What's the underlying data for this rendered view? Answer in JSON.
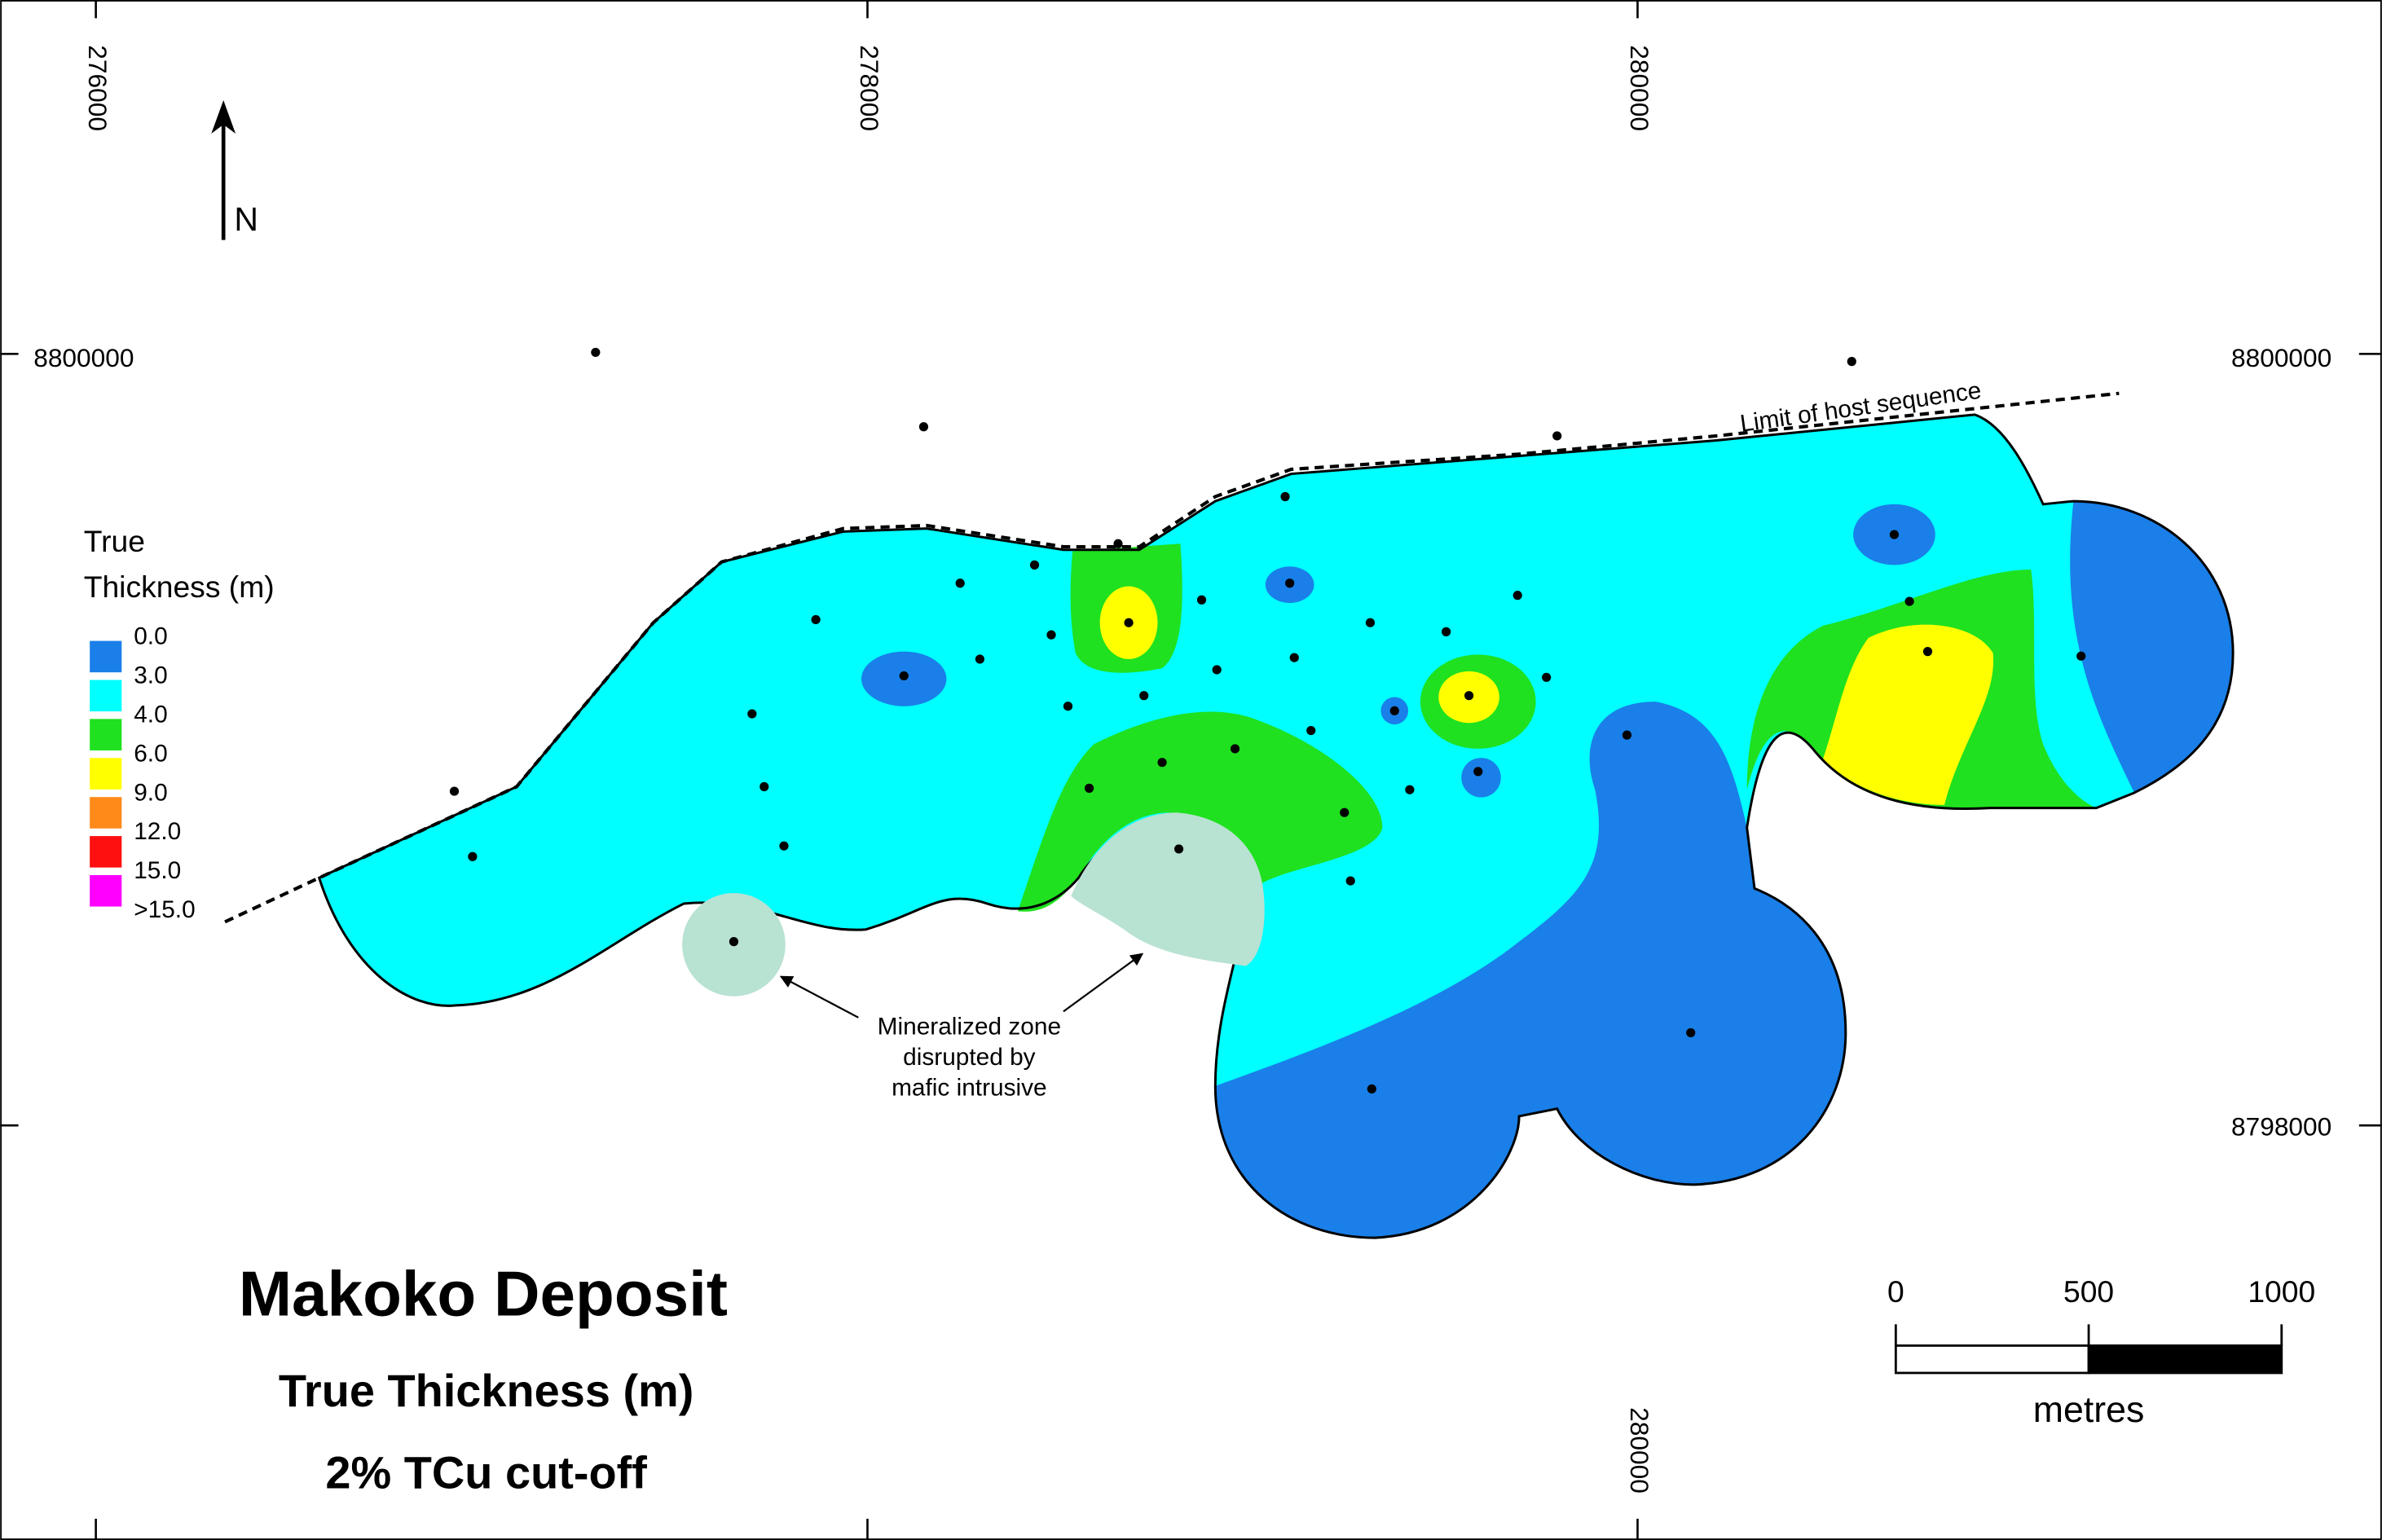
{
  "grid_labels": {
    "top": [
      "276000",
      "278000",
      "280000"
    ],
    "bottom": [
      "280000"
    ],
    "left": [
      "8800000"
    ],
    "right": [
      "8800000",
      "8798000"
    ]
  },
  "north": "N",
  "legend": {
    "title_lines": [
      "True",
      "Thickness (m)"
    ],
    "labels": [
      "0.0",
      "3.0",
      "4.0",
      "6.0",
      "9.0",
      "12.0",
      "15.0",
      ">15.0"
    ],
    "colors": [
      "#1a7fe8",
      "#00ffff",
      "#1fe11f",
      "#ffff00",
      "#ff8a1a",
      "#ff1010",
      "#ff00ff"
    ]
  },
  "annotations": {
    "host_limit": "Limit of host sequence",
    "intrusive_lines": [
      "Mineralized zone",
      "disrupted by",
      "mafic intrusive"
    ]
  },
  "title": {
    "main": "Makoko Deposit",
    "subtitle": "True Thickness (m)",
    "cutoff": "2% TCu cut-off"
  },
  "scale_bar": {
    "labels": [
      "0",
      "500",
      "1000"
    ],
    "unit": "metres"
  }
}
